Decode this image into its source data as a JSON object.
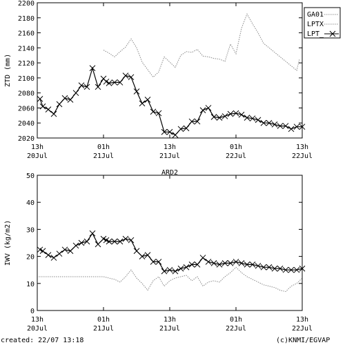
{
  "footer": {
    "created": "created: 22/07 13:18",
    "credit": "(c)KNMI/EGVAP"
  },
  "chart_data": [
    {
      "type": "line",
      "ylabel": "ZTD (mm)",
      "ylim": [
        2020,
        2200
      ],
      "yticks": [
        2020,
        2040,
        2060,
        2080,
        2100,
        2120,
        2140,
        2160,
        2180,
        2200
      ],
      "xlim": [
        0,
        48
      ],
      "xticks": [
        {
          "x": 0,
          "top": "13h",
          "bottom": "20Jul"
        },
        {
          "x": 12,
          "top": "01h",
          "bottom": "21Jul"
        },
        {
          "x": 24,
          "top": "13h",
          "bottom": "21Jul"
        },
        {
          "x": 36,
          "top": "01h",
          "bottom": "22Jul"
        },
        {
          "x": 48,
          "top": "13h",
          "bottom": "22Jul"
        }
      ],
      "legend_position": "top-right",
      "series": [
        {
          "name": "GA01",
          "style": "dotted",
          "color": "#888888",
          "x": [],
          "y": []
        },
        {
          "name": "LPTX",
          "style": "dotted",
          "color": "#888888",
          "x": [
            12,
            13,
            14,
            15,
            16,
            17,
            18,
            19,
            20,
            21,
            22,
            23,
            24,
            25,
            26,
            27,
            28,
            29,
            30,
            31,
            32,
            33,
            34,
            35,
            36,
            37,
            38,
            39,
            40,
            41,
            42,
            43,
            44,
            45,
            46,
            47,
            47.5
          ],
          "y": [
            2137,
            2133,
            2128,
            2135,
            2141,
            2152,
            2140,
            2121,
            2111,
            2101,
            2108,
            2128,
            2121,
            2114,
            2130,
            2135,
            2134,
            2138,
            2129,
            2128,
            2126,
            2125,
            2122,
            2145,
            2132,
            2166,
            2185,
            2172,
            2160,
            2146,
            2140,
            2134,
            2128,
            2122,
            2116,
            2110,
            2125
          ]
        },
        {
          "name": "LPT_",
          "style": "solid-x",
          "color": "#000000",
          "x": [
            0.5,
            1,
            2,
            3,
            4,
            5,
            6,
            7,
            8,
            9,
            10,
            11,
            12,
            12.5,
            13,
            14,
            15,
            16,
            17,
            18,
            19,
            20,
            21,
            22,
            23,
            24,
            25,
            26,
            27,
            28,
            29,
            30,
            31,
            32,
            33,
            34,
            35,
            36,
            37,
            38,
            39,
            40,
            41,
            42,
            43,
            44,
            45,
            46,
            47,
            48
          ],
          "y": [
            2072,
            2062,
            2058,
            2052,
            2065,
            2073,
            2071,
            2080,
            2090,
            2088,
            2113,
            2088,
            2099,
            2095,
            2093,
            2094,
            2094,
            2103,
            2101,
            2082,
            2066,
            2071,
            2055,
            2053,
            2028,
            2028,
            2024,
            2032,
            2033,
            2042,
            2042,
            2057,
            2060,
            2048,
            2047,
            2049,
            2052,
            2053,
            2051,
            2047,
            2046,
            2044,
            2040,
            2040,
            2038,
            2036,
            2036,
            2032,
            2035,
            2035
          ]
        }
      ]
    },
    {
      "type": "line",
      "title": "ARD2",
      "ylabel": "IWV (kg/m2)",
      "ylim": [
        0,
        50
      ],
      "yticks": [
        0,
        10,
        20,
        30,
        40,
        50
      ],
      "xlim": [
        0,
        48
      ],
      "xticks": [
        {
          "x": 0,
          "top": "13h",
          "bottom": "20Jul"
        },
        {
          "x": 12,
          "top": "01h",
          "bottom": "21Jul"
        },
        {
          "x": 24,
          "top": "13h",
          "bottom": "21Jul"
        },
        {
          "x": 36,
          "top": "01h",
          "bottom": "22Jul"
        },
        {
          "x": 48,
          "top": "13h",
          "bottom": "22Jul"
        }
      ],
      "series": [
        {
          "name": "GA01",
          "style": "dotted",
          "color": "#888888",
          "x": [
            0,
            2,
            4,
            6,
            8,
            10,
            12,
            13,
            14,
            15,
            16,
            17,
            18,
            19,
            20,
            21,
            22,
            23,
            24,
            25,
            26,
            27,
            28,
            29,
            30,
            31,
            32,
            33,
            34,
            35,
            36,
            37,
            38,
            39,
            40,
            41,
            42,
            43,
            44,
            45,
            46,
            47,
            48
          ],
          "y": [
            12.5,
            12.5,
            12.5,
            12.5,
            12.5,
            12.5,
            12.5,
            12,
            11.5,
            10.5,
            12.5,
            15,
            12,
            10,
            7.5,
            11,
            12.5,
            9,
            11,
            12,
            12.5,
            13,
            11,
            12.5,
            9,
            10.5,
            11,
            10.5,
            12.5,
            14,
            16,
            14,
            12.5,
            11.5,
            10.5,
            9.5,
            9,
            8.5,
            7.5,
            7,
            9,
            10,
            12
          ]
        },
        {
          "name": "LPT_",
          "style": "solid-x",
          "color": "#000000",
          "x": [
            0.5,
            1,
            2,
            3,
            4,
            5,
            6,
            7,
            8,
            9,
            10,
            11,
            12,
            12.5,
            13,
            14,
            15,
            16,
            17,
            18,
            19,
            20,
            21,
            22,
            23,
            24,
            25,
            26,
            27,
            28,
            29,
            30,
            31,
            32,
            33,
            34,
            35,
            36,
            37,
            38,
            39,
            40,
            41,
            42,
            43,
            44,
            45,
            46,
            47,
            48
          ],
          "y": [
            22.5,
            22,
            20.5,
            19.5,
            21,
            22.5,
            22,
            24,
            25,
            25.5,
            28.5,
            24.5,
            26.5,
            26,
            25.5,
            25.5,
            25.5,
            26.5,
            26,
            22,
            20,
            20.5,
            18,
            18,
            14.5,
            15,
            14.5,
            15.5,
            16,
            17,
            17,
            19.5,
            18,
            17.5,
            17,
            17.5,
            17.5,
            18,
            17.5,
            17,
            17,
            16.5,
            16,
            16,
            15.5,
            15.5,
            15,
            15,
            15,
            15.5
          ]
        }
      ]
    }
  ]
}
